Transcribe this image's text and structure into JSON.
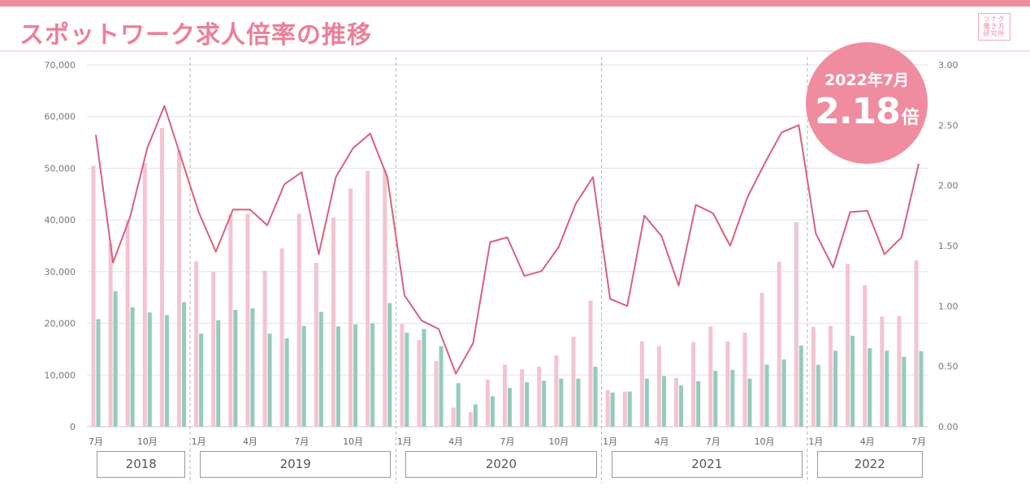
{
  "title": "スポットワーク求人倍率の推移",
  "logo": {
    "line1": "ツナグ",
    "line2": "働き方",
    "line3": "研究所"
  },
  "badge": {
    "date": "2022年7月",
    "value": "2.18",
    "unit": "倍"
  },
  "colors": {
    "accent": "#f08ca0",
    "bar_pink": "#f4c4d0",
    "bar_green": "#94cbbf",
    "line": "#d9607e",
    "grid": "#e2e2e2"
  },
  "chart_data": {
    "type": "bar+line",
    "left_axis": {
      "ylim": [
        0,
        70000
      ],
      "ticks": [
        "0",
        "10,000",
        "20,000",
        "30,000",
        "40,000",
        "50,000",
        "60,000",
        "70,000"
      ]
    },
    "right_axis": {
      "ylim": [
        0,
        3.0
      ],
      "ticks": [
        "0.00",
        "0.50",
        "1.00",
        "1.50",
        "2.00",
        "2.50",
        "3.00"
      ]
    },
    "x_tick_labels": [
      {
        "index": 0,
        "label": "7月"
      },
      {
        "index": 3,
        "label": "10月"
      },
      {
        "index": 6,
        "label": "1月"
      },
      {
        "index": 9,
        "label": "4月"
      },
      {
        "index": 12,
        "label": "7月"
      },
      {
        "index": 15,
        "label": "10月"
      },
      {
        "index": 18,
        "label": "1月"
      },
      {
        "index": 21,
        "label": "4月"
      },
      {
        "index": 24,
        "label": "7月"
      },
      {
        "index": 27,
        "label": "10月"
      },
      {
        "index": 30,
        "label": "1月"
      },
      {
        "index": 33,
        "label": "4月"
      },
      {
        "index": 36,
        "label": "7月"
      },
      {
        "index": 39,
        "label": "10月"
      },
      {
        "index": 42,
        "label": "1月"
      },
      {
        "index": 45,
        "label": "4月"
      },
      {
        "index": 48,
        "label": "7月"
      }
    ],
    "year_groups": [
      {
        "label": "2018",
        "start": 0,
        "end": 5
      },
      {
        "label": "2019",
        "start": 6,
        "end": 17
      },
      {
        "label": "2020",
        "start": 18,
        "end": 29
      },
      {
        "label": "2021",
        "start": 30,
        "end": 41
      },
      {
        "label": "2022",
        "start": 42,
        "end": 48
      }
    ],
    "series_pink": [
      50500,
      35500,
      40000,
      51000,
      57800,
      53500,
      32000,
      30000,
      41000,
      41200,
      30200,
      34500,
      41200,
      31700,
      40500,
      46100,
      49500,
      49700,
      19900,
      16800,
      12700,
      3700,
      2800,
      9100,
      12000,
      11100,
      11600,
      13800,
      17400,
      24400,
      7100,
      6800,
      16500,
      15600,
      9400,
      16400,
      19400,
      16500,
      18200,
      25900,
      31900,
      39600,
      19300,
      19500,
      31500,
      27400,
      21300,
      21400,
      32200
    ],
    "series_green": [
      20800,
      26200,
      23100,
      22100,
      21600,
      24100,
      18000,
      20600,
      22600,
      22900,
      18000,
      17100,
      19500,
      22200,
      19400,
      19800,
      20000,
      23900,
      18200,
      18900,
      15600,
      8400,
      4300,
      5900,
      7500,
      8600,
      8900,
      9300,
      9300,
      11600,
      6600,
      6800,
      9300,
      9800,
      8000,
      8800,
      10800,
      11000,
      9300,
      12000,
      13000,
      15700,
      12000,
      14700,
      17600,
      15200,
      14700,
      13500,
      14600
    ],
    "series_ratio": [
      2.42,
      1.36,
      1.74,
      2.31,
      2.66,
      2.22,
      1.78,
      1.45,
      1.8,
      1.8,
      1.67,
      2.01,
      2.11,
      1.43,
      2.07,
      2.31,
      2.43,
      2.07,
      1.09,
      0.88,
      0.81,
      0.44,
      0.69,
      1.53,
      1.57,
      1.25,
      1.29,
      1.49,
      1.85,
      2.07,
      1.06,
      1.0,
      1.75,
      1.58,
      1.17,
      1.84,
      1.77,
      1.5,
      1.9,
      2.18,
      2.44,
      2.5,
      1.6,
      1.32,
      1.78,
      1.79,
      1.43,
      1.57,
      2.18
    ]
  }
}
